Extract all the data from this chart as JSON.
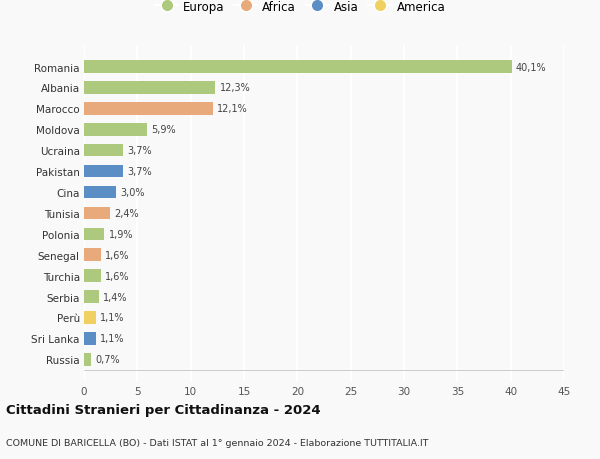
{
  "countries": [
    "Romania",
    "Albania",
    "Marocco",
    "Moldova",
    "Ucraina",
    "Pakistan",
    "Cina",
    "Tunisia",
    "Polonia",
    "Senegal",
    "Turchia",
    "Serbia",
    "Perù",
    "Sri Lanka",
    "Russia"
  ],
  "values": [
    40.1,
    12.3,
    12.1,
    5.9,
    3.7,
    3.7,
    3.0,
    2.4,
    1.9,
    1.6,
    1.6,
    1.4,
    1.1,
    1.1,
    0.7
  ],
  "labels": [
    "40,1%",
    "12,3%",
    "12,1%",
    "5,9%",
    "3,7%",
    "3,7%",
    "3,0%",
    "2,4%",
    "1,9%",
    "1,6%",
    "1,6%",
    "1,4%",
    "1,1%",
    "1,1%",
    "0,7%"
  ],
  "colors": [
    "#adc97e",
    "#adc97e",
    "#e8aa7a",
    "#adc97e",
    "#adc97e",
    "#5b8ec4",
    "#5b8ec4",
    "#e8aa7a",
    "#adc97e",
    "#e8aa7a",
    "#adc97e",
    "#adc97e",
    "#f0d060",
    "#5b8ec4",
    "#adc97e"
  ],
  "legend_labels": [
    "Europa",
    "Africa",
    "Asia",
    "America"
  ],
  "legend_colors": [
    "#adc97e",
    "#e8aa7a",
    "#5b8ec4",
    "#f0d060"
  ],
  "title": "Cittadini Stranieri per Cittadinanza - 2024",
  "subtitle": "COMUNE DI BARICELLA (BO) - Dati ISTAT al 1° gennaio 2024 - Elaborazione TUTTITALIA.IT",
  "xlim": [
    0,
    45
  ],
  "xticks": [
    0,
    5,
    10,
    15,
    20,
    25,
    30,
    35,
    40,
    45
  ],
  "background_color": "#f9f9f9",
  "grid_color": "#ffffff"
}
